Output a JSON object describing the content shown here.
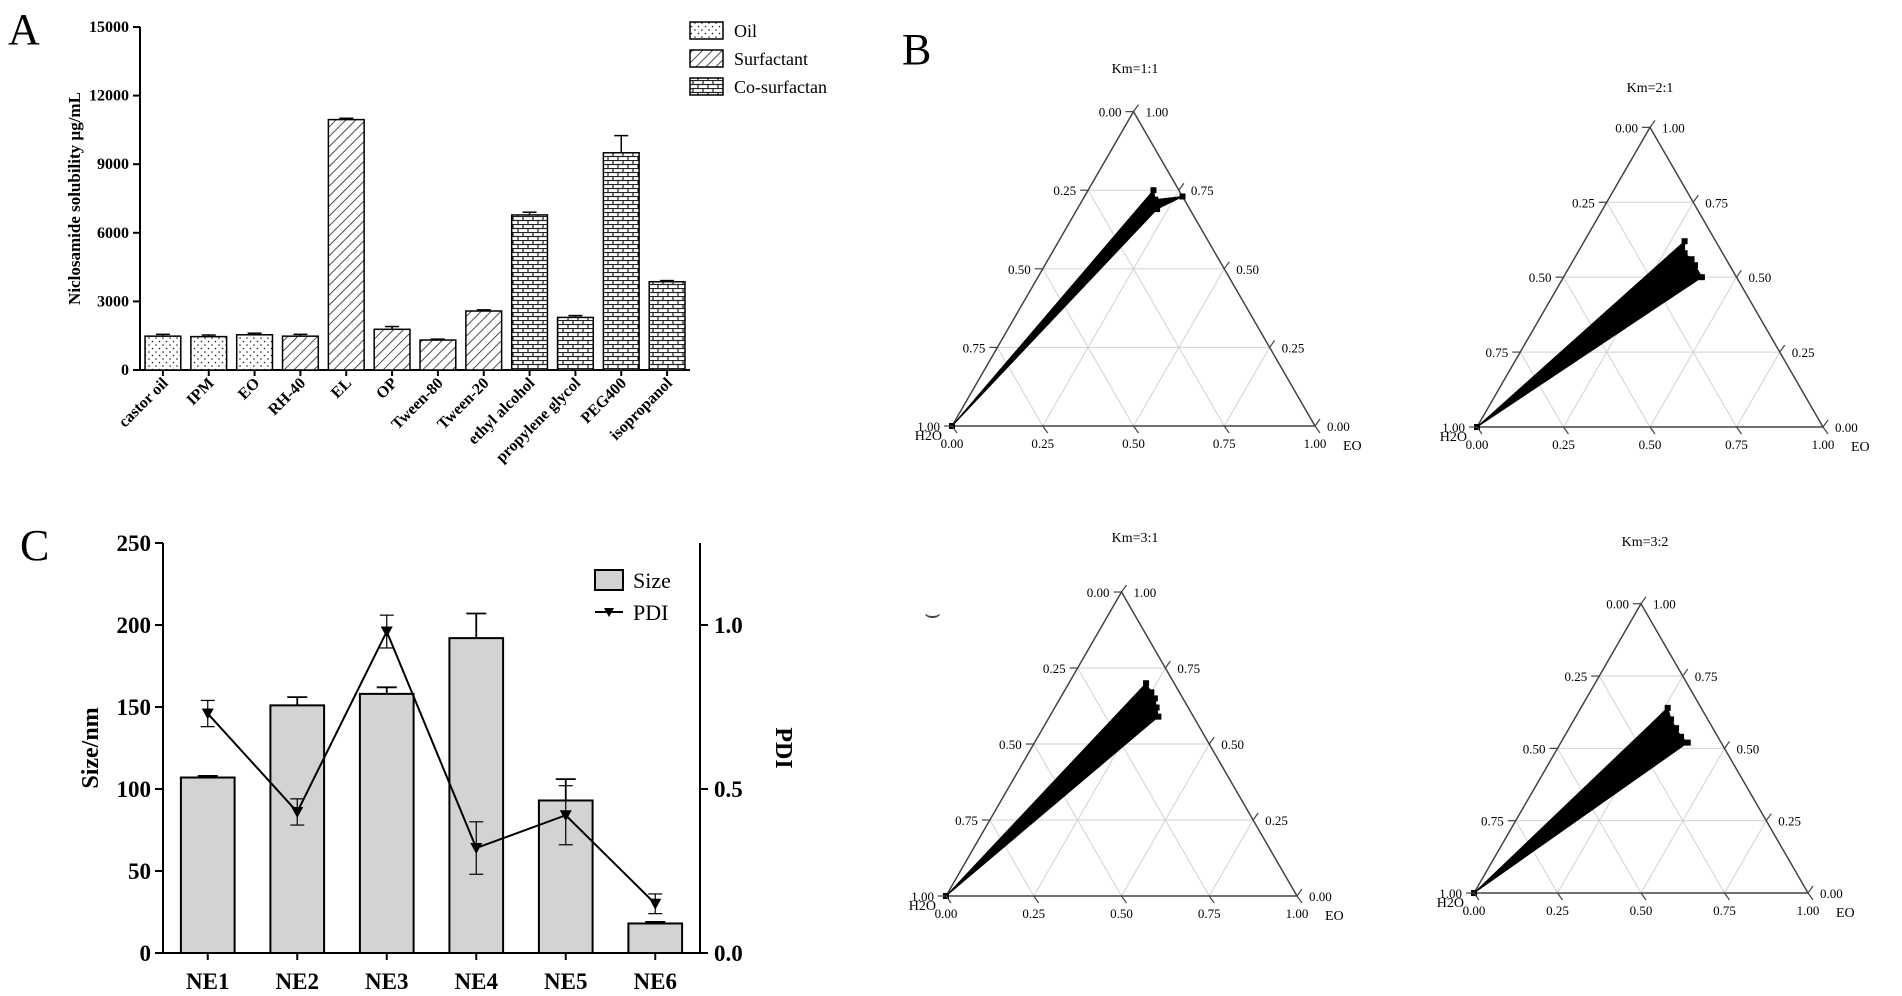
{
  "panels": {
    "a": "A",
    "b": "B",
    "c": "C"
  },
  "chart_data": [
    {
      "type": "bar",
      "panel": "A",
      "ylabel": "Niclosamide solubility µg/mL",
      "ylim": [
        0,
        15000
      ],
      "yticks": [
        "0",
        "3000",
        "6000",
        "9000",
        "12000",
        "15000"
      ],
      "categories": [
        "castor oil",
        "IPM",
        "EO",
        "RH-40",
        "EL",
        "OP",
        "Tween-80",
        "Tween-20",
        "ethyl alcohol",
        "propylene glycol",
        "PEG400",
        "isopropanol"
      ],
      "values": [
        1480,
        1460,
        1540,
        1480,
        10950,
        1780,
        1310,
        2580,
        6780,
        2300,
        9500,
        3860
      ],
      "errors": [
        80,
        70,
        70,
        80,
        60,
        120,
        40,
        50,
        120,
        80,
        750,
        50
      ],
      "groups": [
        "Oil",
        "Oil",
        "Oil",
        "Surfactant",
        "Surfactant",
        "Surfactant",
        "Surfactant",
        "Surfactant",
        "Co-surfactan",
        "Co-surfactan",
        "Co-surfactan",
        "Co-surfactan"
      ],
      "legend": [
        "Oil",
        "Surfactant",
        "Co-surfactan"
      ],
      "legend_position": "top-right"
    },
    {
      "type": "ternary",
      "panel": "B",
      "axis_labels": {
        "left": "H2O",
        "right": "EO"
      },
      "ticks": [
        "0.00",
        "0.25",
        "0.50",
        "0.75",
        "1.00"
      ],
      "subplots": [
        {
          "title": "Km=1:1",
          "region": [
            [
              0,
              0
            ],
            [
              0.18,
              0.75
            ],
            [
              0.2,
              0.72
            ],
            [
              0.27,
              0.73
            ],
            [
              0.22,
              0.69
            ]
          ]
        },
        {
          "title": "Km=2:1",
          "region": [
            [
              0,
              0
            ],
            [
              0.29,
              0.62
            ],
            [
              0.31,
              0.58
            ],
            [
              0.34,
              0.56
            ],
            [
              0.36,
              0.54
            ],
            [
              0.4,
              0.5
            ]
          ]
        },
        {
          "title": "Km=3:1",
          "region": [
            [
              0,
              0
            ],
            [
              0.22,
              0.7
            ],
            [
              0.25,
              0.67
            ],
            [
              0.27,
              0.65
            ],
            [
              0.29,
              0.62
            ],
            [
              0.31,
              0.59
            ]
          ]
        },
        {
          "title": "Km=3:2",
          "region": [
            [
              0,
              0
            ],
            [
              0.26,
              0.64
            ],
            [
              0.29,
              0.6
            ],
            [
              0.32,
              0.57
            ],
            [
              0.35,
              0.54
            ],
            [
              0.38,
              0.52
            ]
          ]
        }
      ]
    },
    {
      "type": "bar+line",
      "panel": "C",
      "categories": [
        "NE1",
        "NE2",
        "NE3",
        "NE4",
        "NE5",
        "NE6"
      ],
      "series": [
        {
          "name": "Size",
          "values": [
            107,
            151,
            158,
            192,
            93,
            18
          ],
          "errors": [
            1,
            5,
            4,
            15,
            13,
            1
          ]
        },
        {
          "name": "PDI",
          "values": [
            0.73,
            0.43,
            0.98,
            0.32,
            0.42,
            0.15
          ],
          "errors": [
            0.04,
            0.04,
            0.05,
            0.08,
            0.09,
            0.03
          ]
        }
      ],
      "ylabel": "Size/nm",
      "y2label": "PDI",
      "ylim": [
        0,
        250
      ],
      "y2lim": [
        0,
        1.25
      ],
      "yticks": [
        "0",
        "50",
        "100",
        "150",
        "200",
        "250"
      ],
      "y2ticks": [
        "0.0",
        "0.5",
        "1.0"
      ],
      "legend_position": "top-right"
    }
  ],
  "misc": {
    "stray_mark": "⌣"
  }
}
